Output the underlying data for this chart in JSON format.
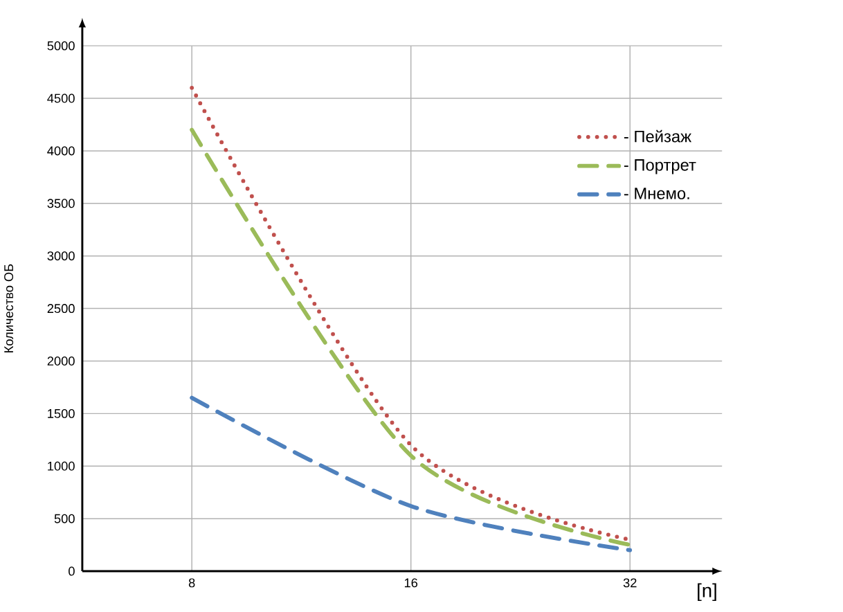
{
  "chart_data": {
    "type": "line",
    "ylabel": "Количество ОБ",
    "xlabel": "[n]",
    "categories": [
      "8",
      "16",
      "32"
    ],
    "series": [
      {
        "name": "- Пейзаж",
        "color": "#c0504d",
        "line_style": "dotted",
        "values": [
          4600,
          1200,
          300
        ]
      },
      {
        "name": "- Портрет",
        "color": "#9bbb59",
        "line_style": "dashed",
        "values": [
          4200,
          1100,
          250
        ]
      },
      {
        "name": "- Мнемо.",
        "color": "#4f81bd",
        "line_style": "dashed",
        "values": [
          1650,
          620,
          200
        ]
      }
    ],
    "ylim": [
      0,
      5000
    ],
    "yticks": [
      0,
      500,
      1000,
      1500,
      2000,
      2500,
      3000,
      3500,
      4000,
      4500,
      5000
    ],
    "grid": true,
    "legend": "top right",
    "marker": "none"
  }
}
